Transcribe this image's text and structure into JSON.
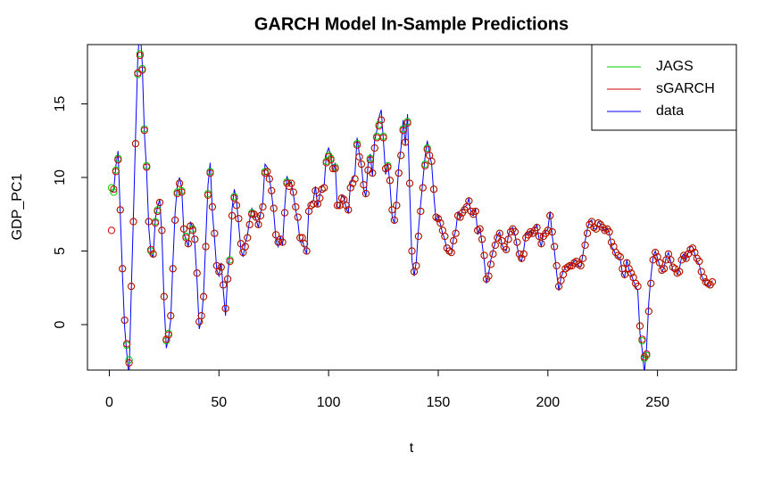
{
  "chart_data": {
    "type": "line",
    "title": "GARCH Model In-Sample Predictions",
    "x_label": "t",
    "y_label": "GDP_PC1",
    "xlim": [
      -9.96,
      285.96
    ],
    "ylim": [
      -3.09,
      19.03
    ],
    "xticks": [
      0,
      50,
      100,
      150,
      200,
      250
    ],
    "yticks": [
      0,
      5,
      10,
      15
    ],
    "legend_position": "top-right",
    "x": [
      1,
      2,
      3,
      4,
      5,
      6,
      7,
      8,
      9,
      10,
      11,
      12,
      13,
      14,
      15,
      16,
      17,
      18,
      19,
      20,
      21,
      22,
      23,
      24,
      25,
      26,
      27,
      28,
      29,
      30,
      31,
      32,
      33,
      34,
      35,
      36,
      37,
      38,
      39,
      40,
      41,
      42,
      43,
      44,
      45,
      46,
      47,
      48,
      49,
      50,
      51,
      52,
      53,
      54,
      55,
      56,
      57,
      58,
      59,
      60,
      61,
      62,
      63,
      64,
      65,
      66,
      67,
      68,
      69,
      70,
      71,
      72,
      73,
      74,
      75,
      76,
      77,
      78,
      79,
      80,
      81,
      82,
      83,
      84,
      85,
      86,
      87,
      88,
      89,
      90,
      91,
      92,
      93,
      94,
      95,
      96,
      97,
      98,
      99,
      100,
      101,
      102,
      103,
      104,
      105,
      106,
      107,
      108,
      109,
      110,
      111,
      112,
      113,
      114,
      115,
      116,
      117,
      118,
      119,
      120,
      121,
      122,
      123,
      124,
      125,
      126,
      127,
      128,
      129,
      130,
      131,
      132,
      133,
      134,
      135,
      136,
      137,
      138,
      139,
      140,
      141,
      142,
      143,
      144,
      145,
      146,
      147,
      148,
      149,
      150,
      151,
      152,
      153,
      154,
      155,
      156,
      157,
      158,
      159,
      160,
      161,
      162,
      163,
      164,
      165,
      166,
      167,
      168,
      169,
      170,
      171,
      172,
      173,
      174,
      175,
      176,
      177,
      178,
      179,
      180,
      181,
      182,
      183,
      184,
      185,
      186,
      187,
      188,
      189,
      190,
      191,
      192,
      193,
      194,
      195,
      196,
      197,
      198,
      199,
      200,
      201,
      202,
      203,
      204,
      205,
      206,
      207,
      208,
      209,
      210,
      211,
      212,
      213,
      214,
      215,
      216,
      217,
      218,
      219,
      220,
      221,
      222,
      223,
      224,
      225,
      226,
      227,
      228,
      229,
      230,
      231,
      232,
      233,
      234,
      235,
      236,
      237,
      238,
      239,
      240,
      241,
      242,
      243,
      244,
      245,
      246,
      247,
      248,
      249,
      250,
      251,
      252,
      253,
      254,
      255,
      256,
      257,
      258,
      259,
      260,
      261,
      262,
      263,
      264,
      265,
      266,
      267,
      268,
      269,
      270,
      271,
      272,
      273,
      274,
      275
    ],
    "series": [
      {
        "name": "JAGS",
        "color": "#00cd00",
        "style": "points",
        "values": [
          9.3,
          9.0,
          10.5,
          11.3,
          7.8,
          3.8,
          0.3,
          -1.4,
          -2.4,
          2.6,
          7.0,
          12.3,
          17.0,
          18.4,
          17.4,
          13.3,
          10.8,
          7.0,
          5.0,
          4.8,
          7.0,
          7.8,
          8.3,
          6.4,
          1.9,
          -1.1,
          -0.6,
          0.6,
          3.8,
          7.1,
          9.0,
          9.6,
          9.1,
          6.5,
          6.0,
          5.5,
          6.7,
          6.5,
          5.8,
          3.5,
          0.2,
          0.6,
          1.9,
          5.3,
          8.9,
          10.4,
          8.0,
          6.2,
          4.0,
          3.6,
          3.9,
          2.7,
          1.1,
          3.1,
          4.4,
          7.4,
          8.7,
          8.1,
          7.2,
          5.5,
          4.9,
          5.3,
          5.9,
          6.8,
          7.6,
          7.5,
          7.3,
          6.8,
          7.4,
          8.0,
          10.4,
          10.4,
          9.9,
          9.1,
          7.9,
          6.1,
          5.6,
          5.8,
          5.6,
          7.6,
          9.7,
          9.4,
          9.6,
          9.0,
          8.0,
          7.3,
          5.9,
          5.9,
          5.5,
          5.0,
          7.7,
          8.1,
          8.2,
          9.1,
          8.2,
          8.6,
          9.2,
          9.3,
          11.1,
          11.5,
          11.3,
          10.6,
          10.7,
          8.1,
          8.1,
          8.6,
          8.5,
          8.1,
          7.8,
          9.3,
          9.6,
          9.9,
          12.3,
          11.4,
          10.9,
          9.5,
          8.9,
          10.5,
          11.3,
          10.3,
          12.0,
          12.8,
          13.6,
          13.9,
          12.8,
          10.6,
          10.8,
          9.8,
          7.8,
          7.1,
          8.1,
          10.3,
          11.5,
          13.3,
          12.4,
          13.8,
          9.6,
          5.0,
          3.6,
          4.0,
          6.0,
          7.7,
          9.3,
          10.9,
          12.0,
          11.5,
          11.1,
          9.2,
          7.3,
          7.2,
          6.9,
          6.4,
          6.0,
          5.2,
          5.0,
          4.9,
          5.7,
          6.2,
          7.4,
          7.3,
          7.6,
          7.8,
          8.0,
          8.4,
          7.7,
          7.5,
          7.7,
          6.4,
          6.5,
          5.8,
          4.7,
          3.1,
          3.3,
          4.1,
          4.8,
          5.4,
          5.9,
          6.2,
          5.7,
          5.3,
          5.1,
          5.8,
          6.3,
          6.5,
          6.3,
          5.6,
          4.8,
          4.5,
          4.8,
          5.9,
          6.1,
          6.3,
          6.2,
          6.4,
          6.6,
          6.0,
          5.5,
          6.0,
          6.2,
          6.4,
          7.4,
          6.3,
          5.3,
          4.0,
          2.6,
          3.0,
          3.4,
          3.8,
          3.9,
          4.0,
          4.0,
          4.2,
          4.3,
          4.1,
          4.0,
          4.5,
          5.4,
          6.2,
          6.8,
          7.0,
          6.6,
          6.5,
          6.9,
          6.8,
          6.6,
          6.4,
          6.5,
          6.3,
          5.6,
          5.3,
          4.9,
          4.7,
          4.6,
          3.8,
          3.4,
          4.2,
          3.8,
          3.5,
          3.2,
          2.8,
          2.6,
          -0.1,
          -1.1,
          -2.3,
          -2.1,
          0.9,
          2.8,
          4.4,
          4.9,
          4.6,
          4.2,
          3.7,
          3.8,
          4.4,
          4.8,
          4.4,
          3.9,
          3.8,
          3.5,
          3.6,
          4.4,
          4.7,
          4.5,
          4.8,
          5.1,
          5.2,
          4.9,
          4.5,
          4.3,
          3.6,
          3.2,
          2.9,
          2.8,
          2.7,
          2.9
        ]
      },
      {
        "name": "sGARCH",
        "color": "#cd0000",
        "style": "points",
        "values": [
          6.4,
          9.2,
          10.4,
          11.2,
          7.8,
          3.8,
          0.3,
          -1.3,
          -2.6,
          2.6,
          7.0,
          12.3,
          17.1,
          18.3,
          17.3,
          13.2,
          10.7,
          7.0,
          5.1,
          4.8,
          6.9,
          7.7,
          8.3,
          6.4,
          1.9,
          -1.0,
          -0.7,
          0.6,
          3.8,
          7.1,
          8.9,
          9.6,
          9.0,
          6.5,
          5.9,
          5.5,
          6.7,
          6.4,
          5.8,
          3.5,
          0.2,
          0.6,
          1.9,
          5.3,
          8.8,
          10.3,
          8.0,
          6.2,
          4.0,
          3.6,
          3.9,
          2.7,
          1.1,
          3.1,
          4.3,
          7.4,
          8.6,
          8.1,
          7.2,
          5.5,
          4.9,
          5.3,
          5.9,
          6.8,
          7.5,
          7.5,
          7.3,
          6.8,
          7.4,
          8.0,
          10.3,
          10.4,
          9.9,
          9.1,
          7.9,
          6.1,
          5.6,
          5.8,
          5.6,
          7.6,
          9.6,
          9.4,
          9.6,
          9.0,
          8.0,
          7.3,
          5.9,
          5.9,
          5.5,
          5.0,
          7.7,
          8.1,
          8.2,
          9.1,
          8.2,
          8.6,
          9.2,
          9.3,
          11.0,
          11.4,
          11.2,
          10.6,
          10.6,
          8.1,
          8.1,
          8.6,
          8.5,
          8.1,
          7.8,
          9.3,
          9.6,
          9.9,
          12.2,
          11.4,
          10.9,
          9.5,
          8.9,
          10.5,
          11.2,
          10.3,
          12.0,
          12.7,
          13.5,
          13.9,
          12.7,
          10.6,
          10.7,
          9.8,
          7.8,
          7.1,
          8.1,
          10.3,
          11.5,
          13.2,
          12.4,
          13.7,
          9.6,
          5.0,
          3.6,
          4.0,
          6.0,
          7.7,
          9.3,
          10.8,
          11.9,
          11.5,
          11.1,
          9.2,
          7.3,
          7.2,
          6.9,
          6.4,
          6.0,
          5.2,
          5.0,
          4.9,
          5.7,
          6.2,
          7.4,
          7.3,
          7.6,
          7.8,
          8.0,
          8.4,
          7.7,
          7.5,
          7.7,
          6.4,
          6.5,
          5.8,
          4.7,
          3.1,
          3.3,
          4.1,
          4.8,
          5.4,
          5.9,
          6.2,
          5.7,
          5.3,
          5.1,
          5.8,
          6.3,
          6.5,
          6.3,
          5.6,
          4.8,
          4.5,
          4.8,
          5.9,
          6.1,
          6.3,
          6.2,
          6.4,
          6.6,
          6.0,
          5.5,
          6.0,
          6.2,
          6.4,
          7.4,
          6.3,
          5.3,
          4.0,
          2.6,
          3.0,
          3.4,
          3.8,
          3.9,
          4.0,
          4.0,
          4.2,
          4.3,
          4.1,
          4.0,
          4.5,
          5.4,
          6.2,
          6.8,
          7.0,
          6.6,
          6.5,
          6.9,
          6.8,
          6.6,
          6.4,
          6.5,
          6.3,
          5.6,
          5.3,
          4.9,
          4.7,
          4.6,
          3.8,
          3.4,
          4.2,
          3.8,
          3.5,
          3.2,
          2.8,
          2.6,
          -0.1,
          -1.0,
          -2.2,
          -2.0,
          0.9,
          2.8,
          4.4,
          4.9,
          4.6,
          4.2,
          3.7,
          3.8,
          4.4,
          4.8,
          4.4,
          3.9,
          3.8,
          3.5,
          3.6,
          4.4,
          4.7,
          4.5,
          4.8,
          5.1,
          5.2,
          4.9,
          4.5,
          4.3,
          3.6,
          3.2,
          2.9,
          2.8,
          2.7,
          2.9
        ]
      },
      {
        "name": "data",
        "color": "#0000ff",
        "style": "line",
        "values": [
          9.0,
          9.1,
          10.8,
          11.8,
          7.5,
          3.4,
          -0.2,
          -2.0,
          -3.6,
          2.2,
          7.4,
          13.0,
          18.2,
          20.2,
          17.8,
          13.0,
          10.5,
          6.6,
          4.8,
          4.6,
          7.2,
          8.0,
          8.5,
          6.0,
          1.4,
          -1.6,
          -0.9,
          0.3,
          4.2,
          7.6,
          9.4,
          10.0,
          9.3,
          6.2,
          5.8,
          5.3,
          7.0,
          6.6,
          5.5,
          3.0,
          -0.3,
          0.3,
          2.1,
          5.8,
          9.5,
          11.0,
          7.7,
          5.8,
          3.7,
          3.3,
          4.2,
          2.3,
          0.6,
          3.4,
          4.8,
          7.9,
          9.2,
          8.4,
          6.8,
          5.1,
          4.6,
          5.5,
          6.1,
          7.1,
          7.9,
          7.6,
          7.1,
          6.6,
          7.6,
          8.3,
          10.9,
          10.7,
          10.0,
          8.9,
          7.6,
          5.7,
          5.3,
          6.0,
          5.4,
          8.0,
          10.1,
          9.6,
          9.7,
          8.8,
          7.8,
          7.0,
          5.6,
          5.8,
          5.2,
          4.8,
          8.0,
          8.3,
          8.4,
          9.4,
          8.0,
          8.8,
          9.4,
          9.5,
          11.6,
          12.0,
          11.5,
          10.4,
          11.0,
          7.9,
          8.0,
          8.8,
          8.6,
          7.9,
          7.6,
          9.6,
          9.9,
          10.2,
          12.7,
          11.6,
          10.8,
          9.2,
          8.7,
          10.9,
          11.6,
          10.1,
          12.5,
          13.2,
          14.1,
          14.6,
          12.5,
          10.2,
          11.0,
          9.5,
          7.3,
          6.9,
          8.5,
          10.8,
          12.0,
          13.9,
          12.2,
          14.3,
          9.0,
          4.4,
          3.3,
          4.3,
          6.5,
          8.2,
          9.8,
          11.4,
          12.5,
          11.6,
          10.9,
          8.8,
          7.0,
          7.4,
          6.8,
          6.2,
          5.8,
          5.0,
          4.8,
          4.8,
          5.9,
          6.4,
          7.7,
          7.2,
          7.8,
          8.0,
          8.1,
          8.6,
          7.5,
          7.4,
          7.9,
          6.1,
          6.6,
          5.5,
          4.3,
          2.8,
          3.5,
          4.4,
          5.0,
          5.6,
          6.1,
          6.3,
          5.5,
          5.1,
          5.0,
          6.1,
          6.5,
          6.6,
          6.1,
          5.3,
          4.5,
          4.3,
          5.1,
          6.2,
          6.2,
          6.4,
          6.1,
          6.5,
          6.8,
          5.8,
          5.3,
          6.2,
          6.3,
          6.5,
          7.7,
          6.0,
          5.0,
          3.5,
          2.3,
          3.2,
          3.6,
          3.9,
          3.9,
          4.1,
          4.0,
          4.3,
          4.4,
          4.0,
          3.9,
          4.8,
          5.7,
          6.5,
          7.0,
          7.1,
          6.5,
          6.5,
          7.0,
          6.8,
          6.5,
          6.3,
          6.6,
          6.2,
          5.3,
          5.1,
          4.7,
          4.6,
          4.5,
          3.5,
          3.2,
          4.4,
          3.7,
          3.4,
          3.0,
          2.6,
          2.3,
          -0.6,
          -1.7,
          -3.3,
          -1.6,
          1.5,
          3.3,
          4.6,
          5.0,
          4.5,
          4.0,
          3.6,
          3.9,
          4.6,
          4.9,
          4.3,
          3.7,
          3.7,
          3.4,
          3.8,
          4.6,
          4.8,
          4.4,
          4.9,
          5.3,
          5.3,
          4.8,
          4.3,
          4.1,
          3.4,
          3.0,
          2.7,
          2.7,
          2.6,
          3.0
        ]
      }
    ]
  }
}
